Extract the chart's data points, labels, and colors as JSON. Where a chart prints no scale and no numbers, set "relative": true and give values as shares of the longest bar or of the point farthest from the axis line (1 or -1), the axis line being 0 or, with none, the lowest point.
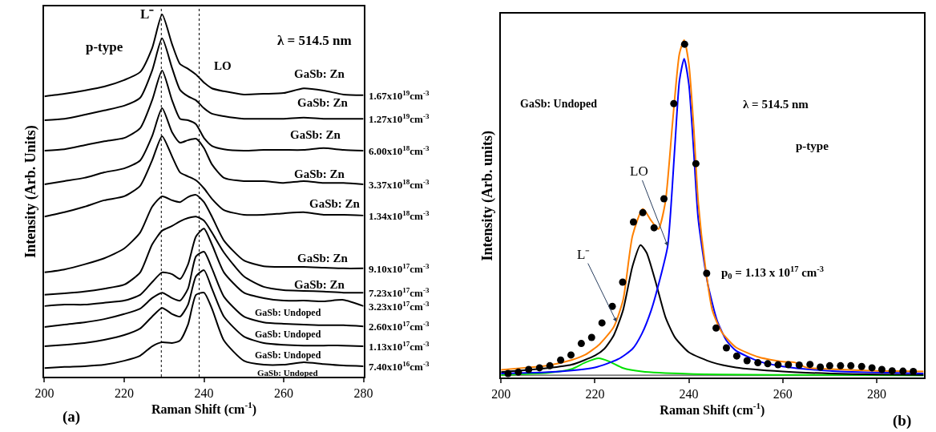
{
  "chart_data": [
    {
      "type": "line",
      "relative": true,
      "xlabel": "Raman Shift (cm$^{-1}$)",
      "ylabel": "Intensity (Arb. Units)",
      "xlim": [
        200,
        280
      ],
      "xticks": [
        200,
        220,
        240,
        260,
        280
      ],
      "legend": false,
      "line_style": "solid",
      "x": [
        200,
        205,
        210,
        215,
        220,
        224,
        227,
        229.5,
        232,
        234,
        236,
        238,
        240,
        242,
        245,
        250,
        255,
        260,
        265,
        270,
        275,
        280
      ],
      "series": [
        {
          "name": "1.67x10$^{19}$cm$^{-3}$",
          "color": "#000000",
          "values": [
            0.774,
            0.781,
            0.79,
            0.801,
            0.819,
            0.841,
            0.907,
            1.0,
            0.918,
            0.863,
            0.85,
            0.834,
            0.812,
            0.796,
            0.788,
            0.779,
            0.781,
            0.783,
            0.796,
            0.79,
            0.779,
            0.777
          ]
        },
        {
          "name": "1.27x10$^{19}$cm$^{-3}$",
          "color": "#000000",
          "values": [
            0.708,
            0.712,
            0.723,
            0.735,
            0.748,
            0.77,
            0.845,
            0.934,
            0.852,
            0.792,
            0.774,
            0.763,
            0.741,
            0.726,
            0.719,
            0.712,
            0.712,
            0.712,
            0.715,
            0.712,
            0.712,
            0.712
          ]
        },
        {
          "name": "6.00x10$^{18}$cm$^{-3}$",
          "color": "#000000",
          "values": [
            0.624,
            0.628,
            0.639,
            0.65,
            0.659,
            0.686,
            0.763,
            0.845,
            0.763,
            0.712,
            0.708,
            0.697,
            0.659,
            0.637,
            0.628,
            0.624,
            0.626,
            0.626,
            0.626,
            0.631,
            0.626,
            0.624
          ]
        },
        {
          "name": "3.37x10$^{18}$cm$^{-3}$",
          "color": "#000000",
          "values": [
            0.531,
            0.54,
            0.549,
            0.564,
            0.575,
            0.597,
            0.664,
            0.741,
            0.675,
            0.646,
            0.653,
            0.657,
            0.631,
            0.586,
            0.549,
            0.54,
            0.54,
            0.535,
            0.54,
            0.535,
            0.535,
            0.531
          ]
        },
        {
          "name": "1.34x10$^{18}$cm$^{-3}$",
          "color": "#000000",
          "values": [
            0.442,
            0.454,
            0.469,
            0.487,
            0.498,
            0.527,
            0.597,
            0.664,
            0.608,
            0.564,
            0.553,
            0.542,
            0.52,
            0.491,
            0.46,
            0.447,
            0.447,
            0.451,
            0.454,
            0.447,
            0.447,
            0.445
          ]
        },
        {
          "name": "9.10x10$^{17}$cm$^{-3}$",
          "color": "#000000",
          "values": [
            0.288,
            0.296,
            0.31,
            0.327,
            0.354,
            0.398,
            0.469,
            0.498,
            0.487,
            0.482,
            0.496,
            0.502,
            0.482,
            0.442,
            0.376,
            0.321,
            0.305,
            0.303,
            0.303,
            0.301,
            0.299,
            0.299
          ]
        },
        {
          "name": "7.23x10$^{17}$cm$^{-3}$",
          "color": "#000000",
          "values": [
            0.226,
            0.23,
            0.235,
            0.243,
            0.254,
            0.288,
            0.365,
            0.403,
            0.416,
            0.429,
            0.438,
            0.442,
            0.431,
            0.398,
            0.343,
            0.277,
            0.248,
            0.239,
            0.237,
            0.235,
            0.232,
            0.232
          ]
        },
        {
          "name": "3.23x10$^{17}$cm$^{-3}$",
          "color": "#000000",
          "values": [
            0.195,
            0.199,
            0.199,
            0.204,
            0.21,
            0.226,
            0.261,
            0.288,
            0.283,
            0.27,
            0.31,
            0.387,
            0.409,
            0.365,
            0.288,
            0.232,
            0.217,
            0.21,
            0.21,
            0.208,
            0.212,
            0.195
          ]
        },
        {
          "name": "2.60x10$^{17}$cm$^{-3}$",
          "color": "#000000",
          "values": [
            0.137,
            0.144,
            0.15,
            0.159,
            0.173,
            0.188,
            0.217,
            0.232,
            0.217,
            0.21,
            0.243,
            0.332,
            0.345,
            0.299,
            0.221,
            0.166,
            0.15,
            0.146,
            0.144,
            0.142,
            0.142,
            0.139
          ]
        },
        {
          "name": "1.13x10$^{17}$cm$^{-3}$",
          "color": "#000000",
          "values": [
            0.084,
            0.088,
            0.093,
            0.102,
            0.115,
            0.133,
            0.166,
            0.19,
            0.173,
            0.166,
            0.199,
            0.277,
            0.294,
            0.243,
            0.166,
            0.111,
            0.093,
            0.088,
            0.086,
            0.086,
            0.086,
            0.084
          ]
        },
        {
          "name": "7.40x10$^{16}$cm$^{-3}$",
          "color": "#000000",
          "values": [
            0.024,
            0.027,
            0.029,
            0.033,
            0.044,
            0.058,
            0.084,
            0.095,
            0.093,
            0.1,
            0.144,
            0.226,
            0.232,
            0.188,
            0.1,
            0.044,
            0.033,
            0.033,
            0.04,
            0.035,
            0.031,
            0.029
          ]
        }
      ],
      "ref_lines": [
        {
          "axis": "x",
          "value": 229.3,
          "line_style": "dotted",
          "color": "#000000"
        },
        {
          "axis": "x",
          "value": 238.8,
          "line_style": "dotted",
          "color": "#000000"
        }
      ],
      "annotations": [
        "p-type",
        "λ = 514.5 nm",
        "(a)",
        "L⁻",
        "LO",
        "GaSb: Zn",
        "GaSb: Zn",
        "GaSb: Zn",
        "GaSb: Zn",
        "GaSb: Zn",
        "GaSb: Zn",
        "GaSb: Zn",
        "GaSb: Undoped",
        "GaSb: Undoped",
        "GaSb: Undoped",
        "GaSb: Undoped"
      ]
    },
    {
      "type": "line",
      "relative": true,
      "xlabel": "Raman Shift (cm$^{-1}$)",
      "ylabel": "Intensity (Arb. units)",
      "xlim": [
        200,
        290
      ],
      "xticks": [
        200,
        220,
        240,
        260,
        280
      ],
      "legend": false,
      "line_style": "solid",
      "series": [
        {
          "color": "#808080",
          "x": [
            200,
            290
          ],
          "values": [
            0.007,
            0.007
          ]
        },
        {
          "color": "#00e000",
          "x": [
            200,
            210,
            215,
            218,
            220.8,
            223,
            226,
            230,
            240,
            260,
            290
          ],
          "values": [
            0.008,
            0.014,
            0.025,
            0.045,
            0.057,
            0.048,
            0.028,
            0.018,
            0.011,
            0.008,
            0.007
          ]
        },
        {
          "color": "#000000",
          "x": [
            200,
            210,
            215,
            220,
            222,
            224,
            226,
            228,
            229.7,
            231,
            233,
            235,
            237,
            240,
            245,
            250,
            260,
            270,
            280,
            290
          ],
          "values": [
            0.016,
            0.028,
            0.038,
            0.065,
            0.085,
            0.125,
            0.2,
            0.33,
            0.393,
            0.37,
            0.28,
            0.18,
            0.12,
            0.075,
            0.045,
            0.03,
            0.018,
            0.012,
            0.009,
            0.008
          ]
        },
        {
          "color": "#0000ff",
          "x": [
            200,
            210,
            220,
            225,
            228,
            230,
            232,
            234,
            235.5,
            237,
            238,
            239,
            240,
            241,
            242,
            244,
            246,
            248,
            250,
            255,
            260,
            270,
            280,
            290
          ],
          "values": [
            0.012,
            0.016,
            0.03,
            0.055,
            0.085,
            0.13,
            0.2,
            0.3,
            0.39,
            0.68,
            0.88,
            0.945,
            0.87,
            0.68,
            0.47,
            0.28,
            0.17,
            0.11,
            0.08,
            0.048,
            0.033,
            0.02,
            0.015,
            0.012
          ]
        },
        {
          "color": "#ff8000",
          "x": [
            200,
            205,
            210,
            215,
            218,
            221,
            224,
            226,
            228,
            230.2,
            232,
            233.5,
            235,
            236.5,
            238,
            239,
            240,
            241,
            242,
            243.5,
            245,
            247,
            250,
            255,
            260,
            262.5,
            265,
            270,
            280,
            290
          ],
          "values": [
            0.023,
            0.029,
            0.036,
            0.052,
            0.068,
            0.099,
            0.15,
            0.23,
            0.42,
            0.5,
            0.465,
            0.44,
            0.52,
            0.75,
            0.96,
            1.0,
            0.93,
            0.75,
            0.52,
            0.33,
            0.2,
            0.135,
            0.09,
            0.06,
            0.047,
            0.045,
            0.03,
            0.025,
            0.02,
            0.018
          ]
        },
        {
          "type": "scatter",
          "marker": "circle",
          "color": "#000000",
          "x": [
            201.5,
            203.7,
            205.9,
            208.2,
            210.4,
            212.7,
            214.9,
            217.1,
            219.3,
            221.5,
            223.7,
            225.9,
            228.2,
            230.2,
            232.6,
            234.7,
            236.8,
            239.1,
            241.5,
            243.8,
            245.8,
            248.0,
            250.2,
            252.4,
            254.7,
            256.8,
            259.0,
            261.2,
            263.5,
            265.8,
            268.0,
            270.0,
            272.3,
            274.5,
            276.8,
            279.0,
            281.1,
            283.3,
            285.6,
            287.8
          ],
          "values": [
            0.012,
            0.016,
            0.024,
            0.029,
            0.035,
            0.052,
            0.067,
            0.101,
            0.119,
            0.162,
            0.211,
            0.283,
            0.461,
            0.489,
            0.444,
            0.53,
            0.812,
            0.988,
            0.634,
            0.309,
            0.147,
            0.088,
            0.064,
            0.05,
            0.044,
            0.041,
            0.038,
            0.038,
            0.037,
            0.039,
            0.031,
            0.035,
            0.035,
            0.035,
            0.033,
            0.029,
            0.024,
            0.02,
            0.019,
            0.018
          ]
        }
      ],
      "annotations": [
        "GaSb: Undoped",
        "λ = 514.5 nm",
        "p-type",
        "p$_{0}$ = 1.13 x 10$^{17}$ cm$^{-3}$",
        "(b)",
        {
          "text": "LO",
          "x": 235.5,
          "y": 0.39
        },
        {
          "text": "L⁻",
          "x": 224.6,
          "y": 0.165
        }
      ]
    }
  ]
}
